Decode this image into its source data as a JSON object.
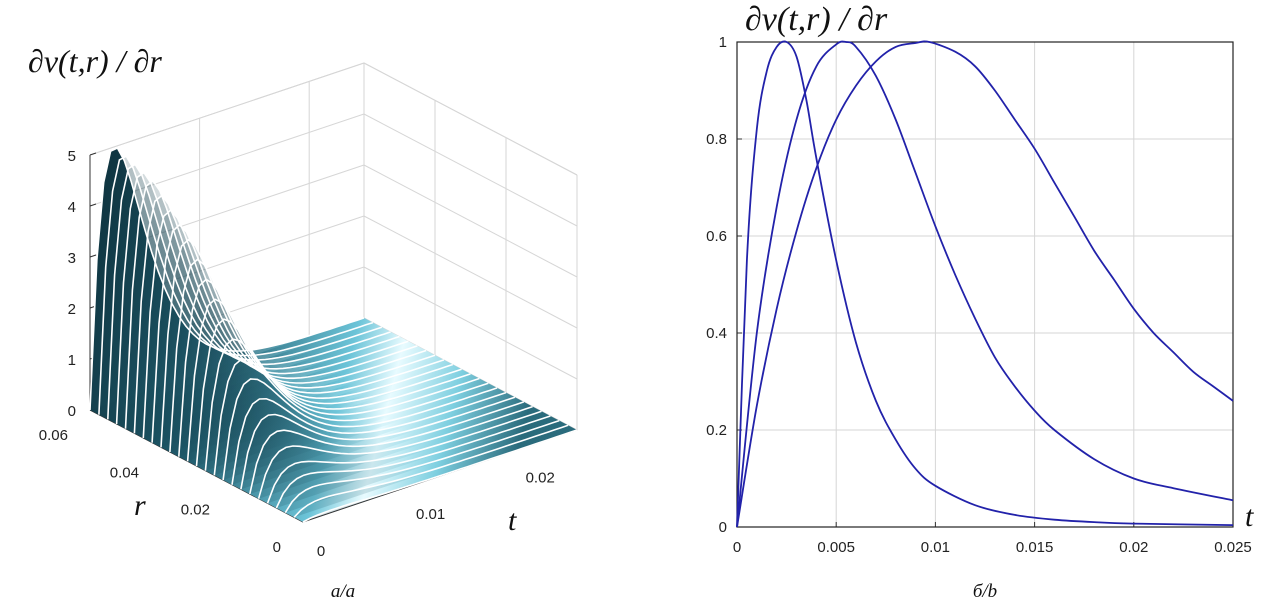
{
  "chart_data": [
    {
      "panel": "a",
      "type": "surface",
      "caption": "a/a",
      "zlabel": "∂v(t,r) / ∂r",
      "xlabel": "t",
      "ylabel": "r",
      "xlim": [
        0,
        0.025
      ],
      "ylim": [
        0,
        0.06
      ],
      "zlim": [
        0,
        5
      ],
      "x_ticks": [
        "0",
        "0.01",
        "0.02"
      ],
      "y_ticks": [
        "0",
        "0.02",
        "0.04",
        "0.06"
      ],
      "z_ticks": [
        "0",
        "1",
        "2",
        "3",
        "4",
        "5"
      ],
      "grid": true,
      "colormap": [
        "#0d2f3a",
        "#1f5a6b",
        "#3a8fa6",
        "#9fe6f5",
        "#e8fbff"
      ],
      "surface_ridge": {
        "r": [
          0.06,
          0.05,
          0.04,
          0.03,
          0.02,
          0.01,
          0.0
        ],
        "peak_value": [
          5.0,
          4.7,
          3.9,
          2.7,
          1.5,
          0.6,
          0.05
        ]
      }
    },
    {
      "panel": "b",
      "type": "line",
      "caption": "б/b",
      "title": "∂v(t,r) / ∂r",
      "xlabel": "t",
      "ylabel": "",
      "xlim": [
        0,
        0.025
      ],
      "ylim": [
        0,
        1
      ],
      "x_ticks": [
        "0",
        "0.005",
        "0.01",
        "0.015",
        "0.02",
        "0.025"
      ],
      "y_ticks": [
        "0",
        "0.2",
        "0.4",
        "0.6",
        "0.8",
        "1"
      ],
      "grid": true,
      "color": "#2222aa",
      "series": [
        {
          "peak_t": 0.0025,
          "x": [
            0,
            0.0005,
            0.001,
            0.0015,
            0.002,
            0.0025,
            0.003,
            0.0035,
            0.004,
            0.005,
            0.006,
            0.007,
            0.008,
            0.009,
            0.01,
            0.012,
            0.014,
            0.016,
            0.018,
            0.02,
            0.025
          ],
          "y": [
            0,
            0.55,
            0.82,
            0.94,
            0.99,
            1.0,
            0.97,
            0.88,
            0.76,
            0.55,
            0.38,
            0.26,
            0.18,
            0.12,
            0.085,
            0.045,
            0.025,
            0.015,
            0.01,
            0.007,
            0.004
          ]
        },
        {
          "peak_t": 0.0055,
          "x": [
            0,
            0.001,
            0.002,
            0.003,
            0.004,
            0.005,
            0.0055,
            0.006,
            0.007,
            0.008,
            0.009,
            0.01,
            0.011,
            0.012,
            0.013,
            0.014,
            0.015,
            0.016,
            0.018,
            0.02,
            0.022,
            0.025
          ],
          "y": [
            0,
            0.4,
            0.66,
            0.84,
            0.95,
            0.995,
            1.0,
            0.99,
            0.93,
            0.84,
            0.73,
            0.62,
            0.52,
            0.43,
            0.35,
            0.29,
            0.24,
            0.2,
            0.14,
            0.1,
            0.08,
            0.055
          ]
        },
        {
          "peak_t": 0.0097,
          "x": [
            0,
            0.001,
            0.002,
            0.003,
            0.004,
            0.005,
            0.006,
            0.007,
            0.008,
            0.009,
            0.0097,
            0.011,
            0.012,
            0.013,
            0.014,
            0.015,
            0.016,
            0.017,
            0.018,
            0.019,
            0.02,
            0.021,
            0.022,
            0.023,
            0.024,
            0.025
          ],
          "y": [
            0,
            0.25,
            0.45,
            0.61,
            0.74,
            0.84,
            0.91,
            0.96,
            0.99,
            0.998,
            1.0,
            0.98,
            0.95,
            0.9,
            0.84,
            0.78,
            0.71,
            0.64,
            0.57,
            0.51,
            0.45,
            0.4,
            0.36,
            0.32,
            0.29,
            0.26
          ]
        }
      ]
    }
  ]
}
